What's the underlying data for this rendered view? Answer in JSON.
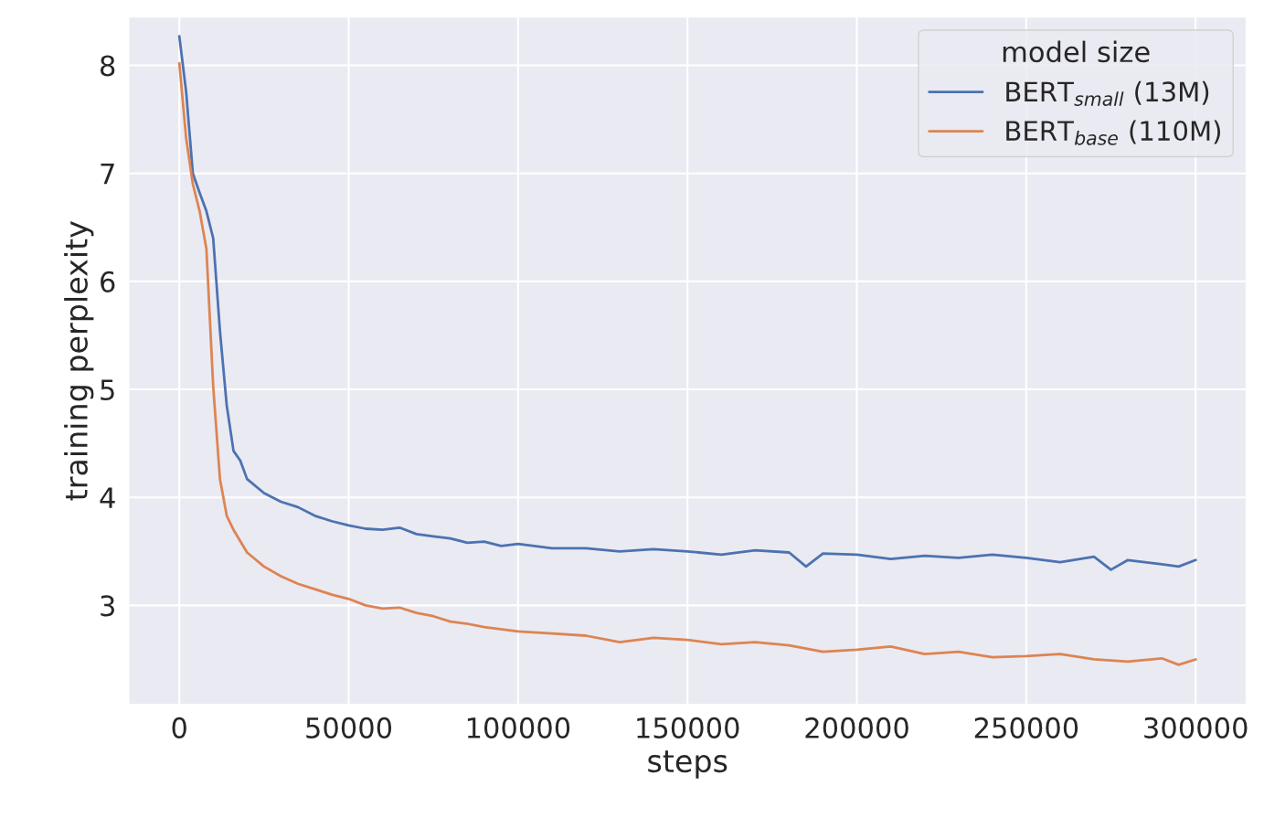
{
  "chart_data": {
    "type": "line",
    "xlabel": "steps",
    "ylabel": "training perplexity",
    "legend_title": "model size",
    "legend": "top right",
    "grid": true,
    "xlim": [
      -15000,
      315000
    ],
    "ylim": [
      2.08,
      8.45
    ],
    "xticks": [
      0,
      50000,
      100000,
      150000,
      200000,
      250000,
      300000
    ],
    "yticks": [
      3,
      4,
      5,
      6,
      7,
      8
    ],
    "series": [
      {
        "name": "BERT$_{small}$ (13M)",
        "color": "#4c72b0",
        "x": [
          0,
          2000,
          4000,
          6000,
          8000,
          10000,
          12000,
          14000,
          16000,
          18000,
          20000,
          25000,
          30000,
          35000,
          40000,
          45000,
          50000,
          55000,
          60000,
          65000,
          70000,
          75000,
          80000,
          85000,
          90000,
          95000,
          100000,
          110000,
          120000,
          130000,
          140000,
          150000,
          160000,
          170000,
          180000,
          185000,
          190000,
          200000,
          210000,
          220000,
          230000,
          240000,
          250000,
          260000,
          270000,
          275000,
          280000,
          290000,
          295000,
          300000
        ],
        "values": [
          8.27,
          7.76,
          7.0,
          6.82,
          6.65,
          6.4,
          5.54,
          4.85,
          4.43,
          4.34,
          4.17,
          4.04,
          3.96,
          3.91,
          3.83,
          3.78,
          3.74,
          3.71,
          3.7,
          3.72,
          3.66,
          3.64,
          3.62,
          3.58,
          3.59,
          3.55,
          3.57,
          3.53,
          3.53,
          3.5,
          3.52,
          3.5,
          3.47,
          3.51,
          3.49,
          3.36,
          3.48,
          3.47,
          3.43,
          3.46,
          3.44,
          3.47,
          3.44,
          3.4,
          3.45,
          3.33,
          3.42,
          3.38,
          3.36,
          3.42
        ]
      },
      {
        "name": "BERT$_{base}$ (110M)",
        "color": "#dd8452",
        "x": [
          0,
          2000,
          4000,
          6000,
          8000,
          10000,
          12000,
          14000,
          16000,
          20000,
          25000,
          30000,
          35000,
          40000,
          45000,
          50000,
          55000,
          60000,
          65000,
          70000,
          75000,
          80000,
          85000,
          90000,
          100000,
          110000,
          120000,
          130000,
          140000,
          150000,
          160000,
          170000,
          180000,
          190000,
          200000,
          210000,
          220000,
          230000,
          240000,
          250000,
          260000,
          270000,
          280000,
          290000,
          295000,
          300000
        ],
        "values": [
          8.02,
          7.33,
          6.9,
          6.65,
          6.3,
          5.03,
          4.17,
          3.83,
          3.7,
          3.49,
          3.36,
          3.27,
          3.2,
          3.15,
          3.1,
          3.06,
          3.0,
          2.97,
          2.98,
          2.93,
          2.9,
          2.85,
          2.83,
          2.8,
          2.76,
          2.74,
          2.72,
          2.66,
          2.7,
          2.68,
          2.64,
          2.66,
          2.63,
          2.57,
          2.59,
          2.62,
          2.55,
          2.57,
          2.52,
          2.53,
          2.55,
          2.5,
          2.48,
          2.51,
          2.45,
          2.5
        ]
      }
    ]
  }
}
